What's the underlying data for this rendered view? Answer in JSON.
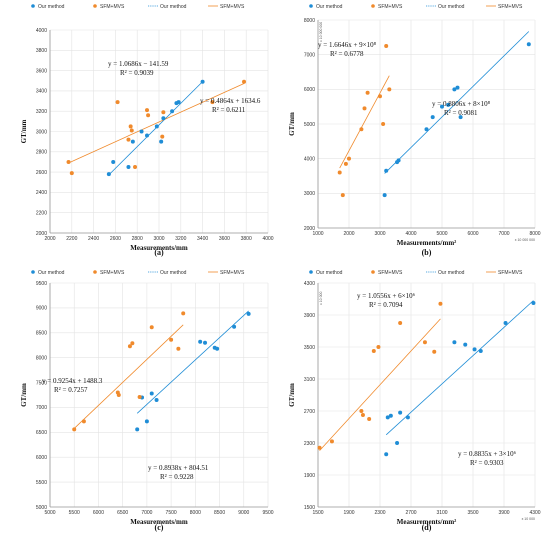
{
  "colors": {
    "our": "#1f8dd6",
    "sfm": "#f08a2c",
    "grid": "#e3e3e3",
    "axis": "#999999"
  },
  "chart_data": [
    {
      "type": "scatter",
      "caption": "(a)",
      "xlabel": "Measurements/mm",
      "ylabel": "GT/mm",
      "xlim": [
        2000,
        4000
      ],
      "ylim": [
        2000,
        4000
      ],
      "xticks": [
        2000,
        2200,
        2400,
        2600,
        2800,
        3000,
        3200,
        3400,
        3600,
        3800,
        4000
      ],
      "yticks": [
        2000,
        2200,
        2400,
        2600,
        2800,
        3000,
        3200,
        3400,
        3600,
        3800,
        4000
      ],
      "xtick_labels": [
        "2000",
        "2200",
        "2400",
        "2600",
        "2800",
        "3000",
        "3200",
        "3400",
        "3600",
        "3800",
        "4000"
      ],
      "ytick_labels": [
        "2000",
        "2200",
        "2400",
        "2600",
        "2800",
        "3000",
        "3200",
        "3400",
        "3600",
        "3800",
        "4000"
      ],
      "legend": [
        "Our method",
        "SFM+MVS",
        "Our method",
        "SFM+MVS"
      ],
      "series": [
        {
          "name": "Our method",
          "x": [
            2540,
            2580,
            2720,
            2760,
            2840,
            2890,
            2980,
            3020,
            3040,
            3120,
            3160,
            3180,
            3400
          ],
          "y": [
            2580,
            2700,
            2650,
            2900,
            3000,
            2960,
            3050,
            2900,
            3130,
            3200,
            3280,
            3290,
            3490
          ]
        },
        {
          "name": "SFM+MVS",
          "x": [
            2170,
            2200,
            2620,
            2720,
            2740,
            2750,
            2780,
            2890,
            2900,
            3030,
            3040,
            3490,
            3780
          ],
          "y": [
            2700,
            2590,
            3290,
            2920,
            3050,
            3010,
            2650,
            3210,
            3160,
            2950,
            3190,
            3290,
            3490
          ]
        }
      ],
      "trendlines": [
        {
          "series": "Our method",
          "slope": 1.0686,
          "intercept": -141.59,
          "x_range": [
            2540,
            3400
          ]
        },
        {
          "series": "SFM+MVS",
          "slope": 0.4864,
          "intercept": 1634.6,
          "x_range": [
            2170,
            3780
          ]
        }
      ],
      "annotations": [
        {
          "series": "Our method",
          "equation": "y = 1.0686x − 141.59",
          "r2": "R² = 0.9039"
        },
        {
          "series": "SFM+MVS",
          "equation": "y = 0.4864x + 1634.6",
          "r2": "R² = 0.6211"
        }
      ]
    },
    {
      "type": "scatter",
      "caption": "(b)",
      "xlabel": "Measurements/mm²",
      "ylabel": "GT/mm",
      "axis_multiplier_x": "x 10 000 000",
      "axis_multiplier_y": "x 10 000 000",
      "xlim": [
        1000,
        8000
      ],
      "ylim": [
        2000,
        8000
      ],
      "xticks": [
        1000,
        2000,
        3000,
        4000,
        5000,
        6000,
        7000,
        8000
      ],
      "yticks": [
        2000,
        3000,
        4000,
        5000,
        6000,
        7000,
        8000
      ],
      "xtick_labels": [
        "1000",
        "2000",
        "3000",
        "4000",
        "5000",
        "6000",
        "7000",
        "8000"
      ],
      "ytick_labels": [
        "2000",
        "3000",
        "4000",
        "5000",
        "6000",
        "7000",
        "8000"
      ],
      "legend": [
        "Our method",
        "SFM+MVS",
        "Our method",
        "SFM+MVS"
      ],
      "series": [
        {
          "name": "Our method",
          "x": [
            3150,
            3200,
            3550,
            3600,
            4500,
            4700,
            5000,
            5200,
            5400,
            5500,
            5600,
            7800
          ],
          "y": [
            2950,
            3650,
            3900,
            3950,
            4850,
            5200,
            5500,
            5550,
            6000,
            6050,
            5200,
            7300
          ]
        },
        {
          "name": "SFM+MVS",
          "x": [
            1700,
            1800,
            1900,
            2000,
            2400,
            2500,
            2600,
            3000,
            3100,
            3200,
            3300
          ],
          "y": [
            3600,
            2950,
            3850,
            4000,
            4850,
            5450,
            5900,
            5800,
            5000,
            7250,
            6000
          ]
        }
      ],
      "trendlines": [
        {
          "series": "Our method",
          "slope": 0.8806,
          "intercept": 800,
          "x_range": [
            3150,
            7800
          ]
        },
        {
          "series": "SFM+MVS",
          "slope": 1.6646,
          "intercept": 900,
          "x_range": [
            1700,
            3300
          ]
        }
      ],
      "annotations": [
        {
          "series": "SFM+MVS",
          "equation": "y = 1.6646x + 9×10⁸",
          "r2": "R² = 0.6778"
        },
        {
          "series": "Our method",
          "equation": "y = 0.8806x + 8×10⁸",
          "r2": "R² = 0.9081"
        }
      ]
    },
    {
      "type": "scatter",
      "caption": "(c)",
      "xlabel": "Measurements/mm",
      "ylabel": "GT/mm",
      "xlim": [
        5000,
        9500
      ],
      "ylim": [
        5000,
        9500
      ],
      "xticks": [
        5000,
        5500,
        6000,
        6500,
        7000,
        7500,
        8000,
        8500,
        9000,
        9500
      ],
      "yticks": [
        5000,
        5500,
        6000,
        6500,
        7000,
        7500,
        8000,
        8500,
        9000,
        9500
      ],
      "xtick_labels": [
        "5000",
        "5500",
        "6000",
        "6500",
        "7000",
        "7500",
        "8000",
        "8500",
        "9000",
        "9500"
      ],
      "ytick_labels": [
        "5000",
        "5500",
        "6000",
        "6500",
        "7000",
        "7500",
        "8000",
        "8500",
        "9000",
        "9500"
      ],
      "legend": [
        "Our method",
        "SFM+MVS",
        "Our method",
        "SFM+MVS"
      ],
      "series": [
        {
          "name": "Our method",
          "x": [
            6800,
            6900,
            7000,
            7100,
            7200,
            8100,
            8200,
            8400,
            8450,
            8800,
            9100
          ],
          "y": [
            6560,
            7200,
            6720,
            7280,
            7150,
            8320,
            8300,
            8200,
            8180,
            8620,
            8880
          ]
        },
        {
          "name": "SFM+MVS",
          "x": [
            5500,
            5700,
            6400,
            6420,
            6650,
            6700,
            6850,
            7100,
            7500,
            7650,
            7750
          ],
          "y": [
            6560,
            6720,
            7300,
            7250,
            8230,
            8290,
            7210,
            8610,
            8360,
            8180,
            8890
          ]
        }
      ],
      "trendlines": [
        {
          "series": "Our method",
          "slope": 0.8938,
          "intercept": 804.51,
          "x_range": [
            6800,
            9100
          ]
        },
        {
          "series": "SFM+MVS",
          "slope": 0.9254,
          "intercept": 1488.3,
          "x_range": [
            5500,
            7750
          ]
        }
      ],
      "annotations": [
        {
          "series": "SFM+MVS",
          "equation": "y = 0.9254x + 1488.3",
          "r2": "R² = 0.7257"
        },
        {
          "series": "Our method",
          "equation": "y = 0.8938x + 804.51",
          "r2": "R² = 0.9228"
        }
      ]
    },
    {
      "type": "scatter",
      "caption": "(d)",
      "xlabel": "Measurements/mm²",
      "ylabel": "GT/mm",
      "axis_multiplier_x": "x 10 000",
      "axis_multiplier_y": "x 10 000",
      "xlim": [
        1500,
        4300
      ],
      "ylim": [
        1500,
        4300
      ],
      "xticks": [
        1500,
        1900,
        2300,
        2700,
        3100,
        3500,
        3900,
        4300
      ],
      "yticks": [
        1500,
        1900,
        2300,
        2700,
        3100,
        3500,
        3900,
        4300
      ],
      "xtick_labels": [
        "1500",
        "1900",
        "2300",
        "2700",
        "3100",
        "3500",
        "3900",
        "4300"
      ],
      "ytick_labels": [
        "1500",
        "1900",
        "2300",
        "2700",
        "3100",
        "3500",
        "3900",
        "4300"
      ],
      "legend": [
        "Our method",
        "SFM+MVS",
        "Our method",
        "SFM+MVS"
      ],
      "series": [
        {
          "name": "Our method",
          "x": [
            2380,
            2400,
            2440,
            2520,
            2560,
            2660,
            3260,
            3400,
            3520,
            3600,
            3920,
            4280
          ],
          "y": [
            2160,
            2620,
            2640,
            2300,
            2680,
            2620,
            3560,
            3530,
            3470,
            3450,
            3800,
            4050
          ]
        },
        {
          "name": "SFM+MVS",
          "x": [
            1520,
            1680,
            2060,
            2080,
            2160,
            2220,
            2280,
            2560,
            2880,
            3000,
            3080
          ],
          "y": [
            2240,
            2320,
            2700,
            2650,
            2600,
            3450,
            3500,
            3800,
            3560,
            3440,
            4040
          ]
        }
      ],
      "trendlines": [
        {
          "series": "Our method",
          "slope": 0.8835,
          "intercept": 300,
          "x_range": [
            2380,
            4280
          ]
        },
        {
          "series": "SFM+MVS",
          "slope": 1.0556,
          "intercept": 600,
          "x_range": [
            1520,
            3080
          ]
        }
      ],
      "annotations": [
        {
          "series": "SFM+MVS",
          "equation": "y = 1.0556x + 6×10⁶",
          "r2": "R² = 0.7094"
        },
        {
          "series": "Our method",
          "equation": "y = 0.8835x + 3×10⁶",
          "r2": "R² = 0.9303"
        }
      ]
    }
  ]
}
